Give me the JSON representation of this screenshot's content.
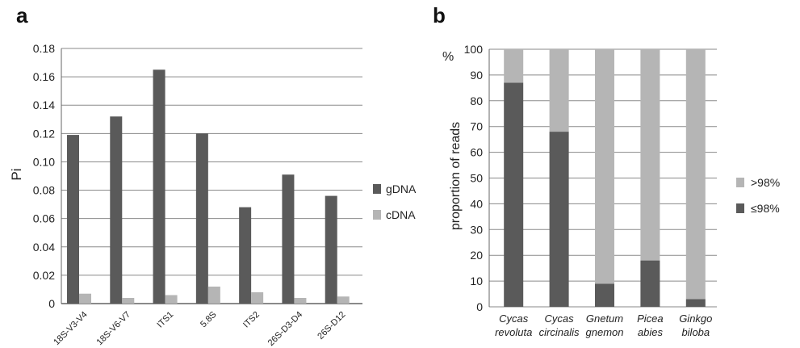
{
  "panel_labels": {
    "a": "a",
    "b": "b"
  },
  "chart_data": [
    {
      "type": "bar",
      "panel": "a",
      "ylabel": "Pi",
      "xlabel": "",
      "ylim": [
        0,
        0.18
      ],
      "yticks": [
        "0",
        "0.02",
        "0.04",
        "0.06",
        "0.08",
        "0.10",
        "0.12",
        "0.14",
        "0.16",
        "0.18"
      ],
      "grid": true,
      "legend_position": "right",
      "categories": [
        "18S-V3-V4",
        "18S-V6-V7",
        "ITS1",
        "5.8S",
        "ITS2",
        "26S-D3-D4",
        "26S-D12"
      ],
      "series": [
        {
          "name": "gDNA",
          "color": "#5a5a5a",
          "values": [
            0.119,
            0.132,
            0.165,
            0.12,
            0.068,
            0.091,
            0.076
          ]
        },
        {
          "name": "cDNA",
          "color": "#b5b5b5",
          "values": [
            0.007,
            0.004,
            0.006,
            0.012,
            0.008,
            0.004,
            0.005
          ]
        }
      ]
    },
    {
      "type": "bar",
      "stacked": true,
      "panel": "b",
      "ylabel": "proportion of reads",
      "yunit": "%",
      "xlabel": "",
      "ylim": [
        0,
        100
      ],
      "yticks": [
        "0",
        "10",
        "20",
        "30",
        "40",
        "50",
        "60",
        "70",
        "80",
        "90",
        "100"
      ],
      "grid": true,
      "legend_position": "right",
      "categories": [
        [
          "Cycas",
          "revoluta"
        ],
        [
          "Cycas",
          "circinalis"
        ],
        [
          "Gnetum",
          "gnemon"
        ],
        [
          "Picea",
          "abies"
        ],
        [
          "Ginkgo",
          "biloba"
        ]
      ],
      "series": [
        {
          "name": "≤98%",
          "color": "#5a5a5a",
          "values": [
            87,
            68,
            9,
            18,
            3
          ]
        },
        {
          "name": ">98%",
          "color": "#b5b5b5",
          "values": [
            13,
            32,
            91,
            82,
            97
          ]
        }
      ],
      "legend_order": [
        ">98%",
        "≤98%"
      ]
    }
  ]
}
